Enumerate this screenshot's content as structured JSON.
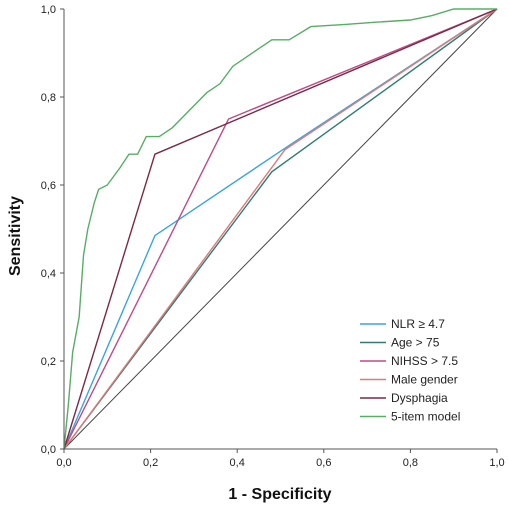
{
  "chart_data": {
    "type": "line",
    "xlabel": "1 - Specificity",
    "ylabel": "Sensitivity",
    "xlim": [
      0,
      1
    ],
    "ylim": [
      0,
      1
    ],
    "x_ticks": [
      "0,0",
      "0,2",
      "0,4",
      "0,6",
      "0,8",
      "1,0"
    ],
    "y_ticks": [
      "0,0",
      "0,2",
      "0,4",
      "0,6",
      "0,8",
      "1,0"
    ],
    "grid": false,
    "legend_position": "bottom-right",
    "series": [
      {
        "name": "NLR ≥ 4.7",
        "color": "#3aa6d9",
        "points": [
          [
            0,
            0
          ],
          [
            0.21,
            0.485
          ],
          [
            0.52,
            0.69
          ],
          [
            1,
            1
          ]
        ]
      },
      {
        "name": "Age > 75",
        "color": "#2f7d74",
        "points": [
          [
            0,
            0
          ],
          [
            0.48,
            0.63
          ],
          [
            1,
            1
          ]
        ]
      },
      {
        "name": "NIHSS > 7.5",
        "color": "#c04a86",
        "points": [
          [
            0,
            0
          ],
          [
            0.38,
            0.75
          ],
          [
            1,
            1
          ]
        ]
      },
      {
        "name": "Male gender",
        "color": "#e07a7a",
        "points": [
          [
            0,
            0
          ],
          [
            0.51,
            0.68
          ],
          [
            1,
            1
          ]
        ]
      },
      {
        "name": "Dysphagia",
        "color": "#7a2a44",
        "points": [
          [
            0,
            0
          ],
          [
            0.21,
            0.67
          ],
          [
            1,
            1
          ]
        ]
      },
      {
        "name": "5-item model",
        "color": "#58ad66",
        "points": [
          [
            0,
            0
          ],
          [
            0.01,
            0.1
          ],
          [
            0.02,
            0.22
          ],
          [
            0.035,
            0.3
          ],
          [
            0.045,
            0.44
          ],
          [
            0.055,
            0.5
          ],
          [
            0.07,
            0.56
          ],
          [
            0.08,
            0.59
          ],
          [
            0.1,
            0.6
          ],
          [
            0.13,
            0.64
          ],
          [
            0.15,
            0.67
          ],
          [
            0.17,
            0.67
          ],
          [
            0.19,
            0.71
          ],
          [
            0.21,
            0.71
          ],
          [
            0.22,
            0.71
          ],
          [
            0.25,
            0.73
          ],
          [
            0.27,
            0.75
          ],
          [
            0.3,
            0.78
          ],
          [
            0.33,
            0.81
          ],
          [
            0.36,
            0.83
          ],
          [
            0.39,
            0.87
          ],
          [
            0.42,
            0.89
          ],
          [
            0.45,
            0.91
          ],
          [
            0.48,
            0.93
          ],
          [
            0.52,
            0.93
          ],
          [
            0.57,
            0.96
          ],
          [
            0.65,
            0.965
          ],
          [
            0.72,
            0.97
          ],
          [
            0.8,
            0.975
          ],
          [
            0.85,
            0.985
          ],
          [
            0.9,
            1
          ],
          [
            1,
            1
          ]
        ]
      }
    ],
    "reference_line": {
      "color": "#444444",
      "points": [
        [
          0,
          0
        ],
        [
          1,
          1
        ]
      ]
    }
  }
}
